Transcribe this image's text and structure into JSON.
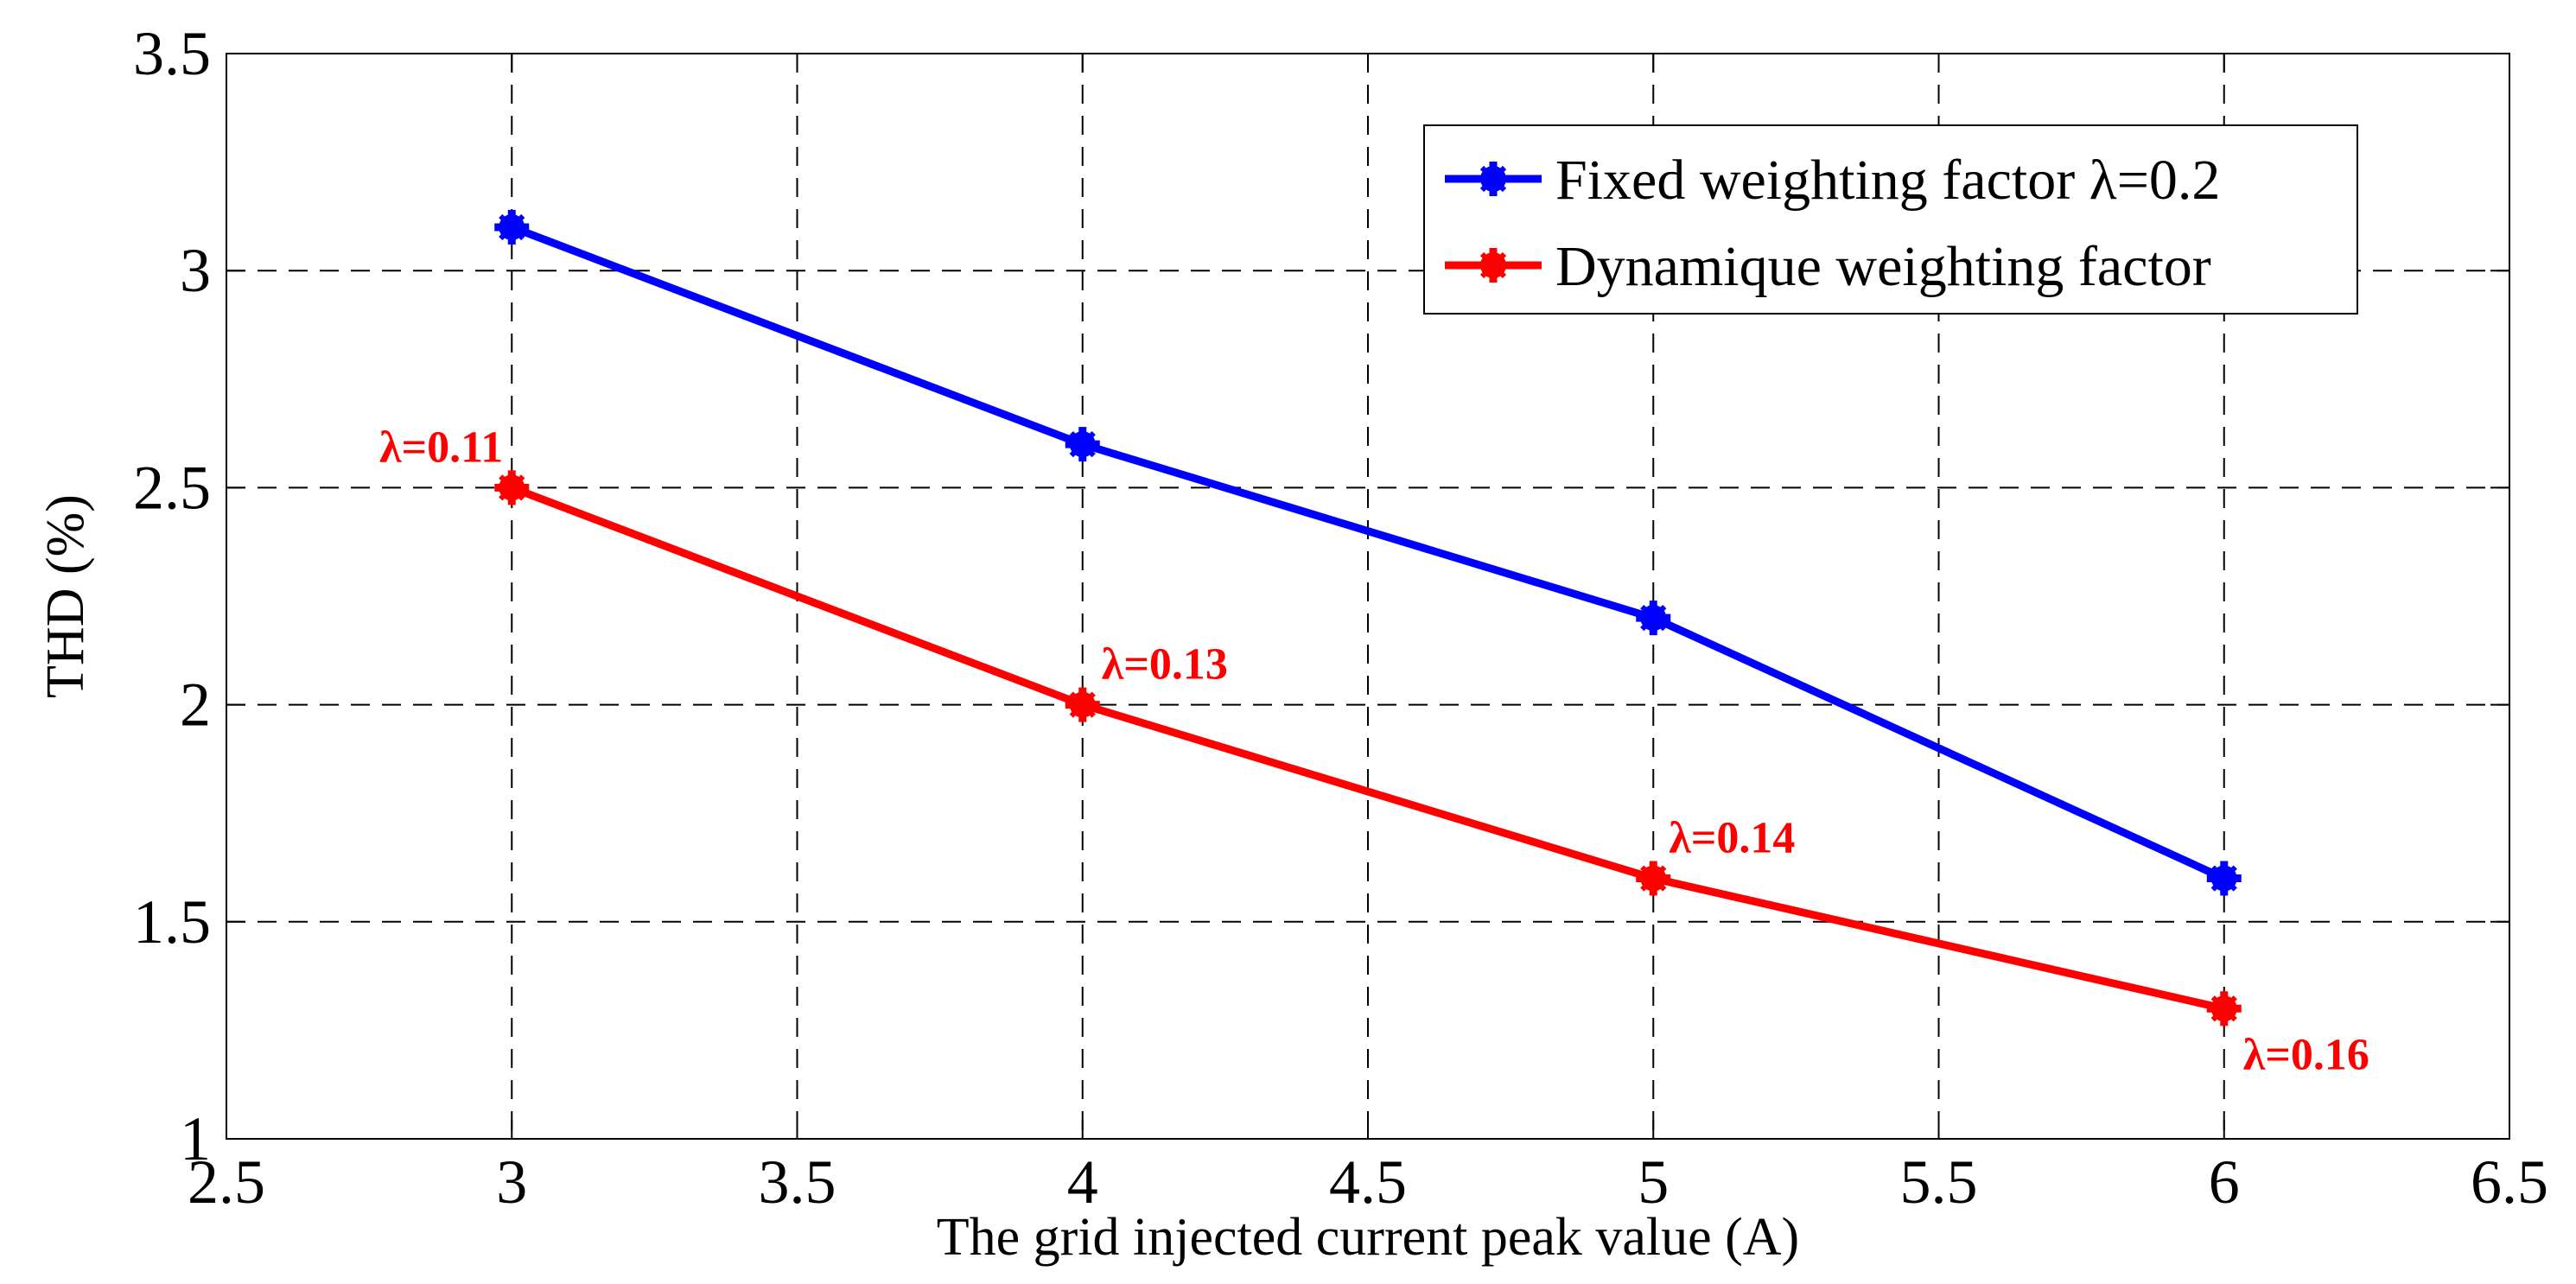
{
  "chart_data": {
    "type": "line",
    "title": "",
    "xlabel": "The grid injected current peak value (A)",
    "ylabel": "THD (%)",
    "xlim": [
      2.5,
      6.5
    ],
    "ylim": [
      1,
      3.5
    ],
    "xticks": [
      2.5,
      3,
      3.5,
      4,
      4.5,
      5,
      5.5,
      6,
      6.5
    ],
    "yticks": [
      1,
      1.5,
      2,
      2.5,
      3,
      3.5
    ],
    "xtick_labels": [
      "2.5",
      "3",
      "3.5",
      "4",
      "4.5",
      "5",
      "5.5",
      "6",
      "6.5"
    ],
    "ytick_labels": [
      "1",
      "1.5",
      "2",
      "2.5",
      "3",
      "3.5"
    ],
    "grid": true,
    "legend_position": "top-right",
    "series": [
      {
        "name": "Fixed weighting factor λ=0.2",
        "color": "#0000ff",
        "x": [
          3,
          4,
          5,
          6
        ],
        "y": [
          3.1,
          2.6,
          2.2,
          1.6
        ]
      },
      {
        "name": "Dynamique weighting factor",
        "color": "#ff0000",
        "x": [
          3,
          4,
          5,
          6
        ],
        "y": [
          2.5,
          2.0,
          1.6,
          1.3
        ]
      }
    ],
    "annotations": [
      {
        "text": "λ=0.11",
        "x": 3,
        "y": 2.5,
        "color": "#ff0000"
      },
      {
        "text": "λ=0.13",
        "x": 4,
        "y": 2.0,
        "color": "#ff0000"
      },
      {
        "text": "λ=0.14",
        "x": 5,
        "y": 1.6,
        "color": "#ff0000"
      },
      {
        "text": "λ=0.16",
        "x": 6,
        "y": 1.3,
        "color": "#ff0000"
      }
    ]
  }
}
